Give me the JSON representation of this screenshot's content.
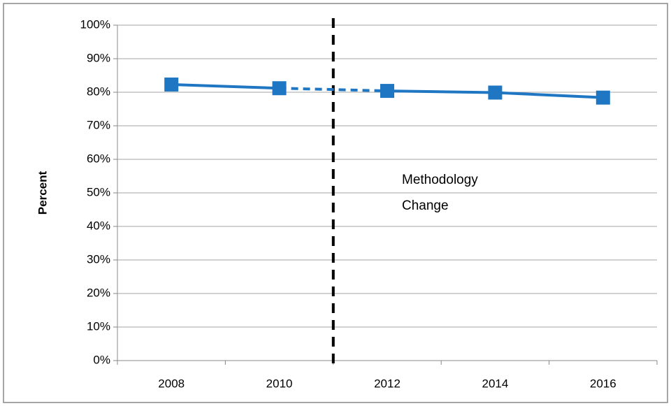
{
  "chart_data": {
    "type": "line",
    "y_label": "Percent",
    "x": [
      2008,
      2010,
      2012,
      2014,
      2016
    ],
    "xlim": [
      2007,
      2017
    ],
    "xticks": [
      2008,
      2010,
      2012,
      2014,
      2016
    ],
    "series": [
      {
        "color": "#1f77c4",
        "values": [
          82.3,
          81.2,
          80.4,
          79.9,
          78.4
        ],
        "segment_styles": [
          "solid",
          "dashed",
          "solid",
          "solid"
        ]
      }
    ],
    "ylim": [
      0,
      100
    ],
    "yticks": [
      {
        "value": 0,
        "label": "0%"
      },
      {
        "value": 10,
        "label": "10%"
      },
      {
        "value": 20,
        "label": "20%"
      },
      {
        "value": 30,
        "label": "30%"
      },
      {
        "value": 40,
        "label": "40%"
      },
      {
        "value": 50,
        "label": "50%"
      },
      {
        "value": 60,
        "label": "60%"
      },
      {
        "value": 70,
        "label": "70%"
      },
      {
        "value": 80,
        "label": "80%"
      },
      {
        "value": 90,
        "label": "90%"
      },
      {
        "value": 100,
        "label": "100%"
      }
    ],
    "grid": true,
    "vline": 2011,
    "annotation": [
      "Methodology",
      "Change"
    ]
  }
}
